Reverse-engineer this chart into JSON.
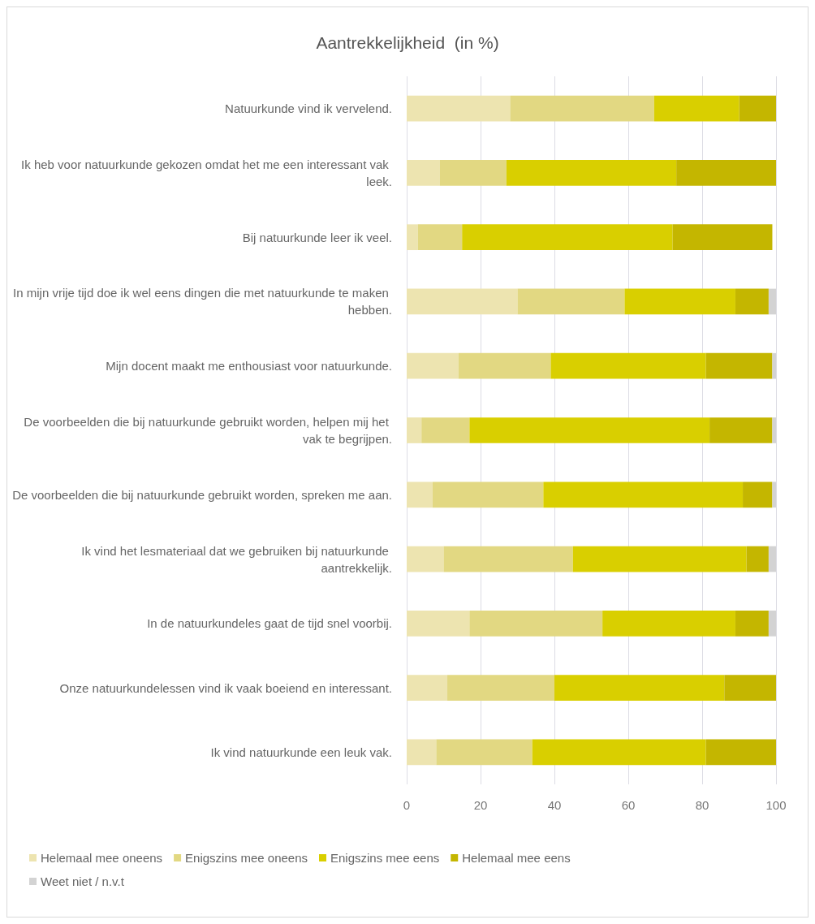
{
  "chart_data": {
    "type": "bar",
    "orientation": "horizontal",
    "stacked": true,
    "title": "Aantrekkelijkheid  (in %)",
    "categories": [
      "Natuurkunde vind ik vervelend.",
      "Ik heb voor natuurkunde gekozen omdat het me een interessant vak leek.",
      "Bij natuurkunde leer ik veel.",
      "In mijn vrije tijd doe ik wel eens dingen die met natuurkunde te maken hebben.",
      "Mijn docent maakt me enthousiast voor natuurkunde.",
      "De voorbeelden die bij natuurkunde gebruikt worden, helpen mij het vak te begrijpen.",
      "De voorbeelden die bij natuurkunde gebruikt worden, spreken me aan.",
      "Ik vind het lesmateriaal dat we gebruiken bij natuurkunde aantrekkelijk.",
      "In de natuurkundeles gaat de tijd snel voorbij.",
      "Onze natuurkundelessen vind ik vaak boeiend en interessant.",
      "Ik vind natuurkunde een leuk vak."
    ],
    "series": [
      {
        "name": "Helemaal mee oneens",
        "color": "#ede4b0",
        "values": [
          28,
          9,
          3,
          30,
          14,
          4,
          7,
          10,
          17,
          11,
          8
        ]
      },
      {
        "name": "Enigszins mee oneens",
        "color": "#e2d882",
        "values": [
          39,
          18,
          12,
          29,
          25,
          13,
          30,
          35,
          36,
          29,
          26
        ]
      },
      {
        "name": "Enigszins mee eens",
        "color": "#d9cf00",
        "values": [
          23,
          46,
          57,
          30,
          42,
          65,
          54,
          47,
          36,
          46,
          47
        ]
      },
      {
        "name": "Helemaal mee eens",
        "color": "#c4b600",
        "values": [
          10,
          27,
          27,
          9,
          18,
          17,
          8,
          6,
          9,
          14,
          19
        ]
      },
      {
        "name": "Weet niet / n.v.t",
        "color": "#d3d3d3",
        "values": [
          0,
          0,
          0,
          2,
          1,
          1,
          1,
          2,
          2,
          0,
          0
        ]
      }
    ],
    "xlim": [
      0,
      100
    ],
    "xticks": [
      0,
      20,
      40,
      60,
      80,
      100
    ],
    "grid": "x",
    "legend": "bottom"
  }
}
